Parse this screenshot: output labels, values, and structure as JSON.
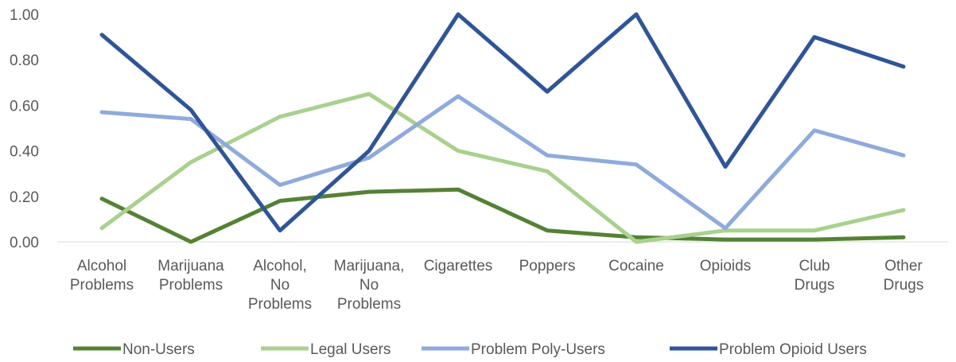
{
  "chart_data": {
    "type": "line",
    "title": "",
    "xlabel": "",
    "ylabel": "",
    "ylim": [
      0,
      1
    ],
    "y_ticks": [
      "0.00",
      "0.20",
      "0.40",
      "0.60",
      "0.80",
      "1.00"
    ],
    "grid": false,
    "legend_position": "bottom",
    "categories": [
      [
        "Alcohol",
        "Problems"
      ],
      [
        "Marijuana",
        "Problems"
      ],
      [
        "Alcohol,",
        "No",
        "Problems"
      ],
      [
        "Marijuana,",
        "No",
        "Problems"
      ],
      [
        "Cigarettes"
      ],
      [
        "Poppers"
      ],
      [
        "Cocaine"
      ],
      [
        "Opioids"
      ],
      [
        "Club",
        "Drugs"
      ],
      [
        "Other",
        "Drugs"
      ]
    ],
    "series": [
      {
        "name": "Non-Users",
        "color": "#548235",
        "values": [
          0.19,
          0.0,
          0.18,
          0.22,
          0.23,
          0.05,
          0.02,
          0.01,
          0.01,
          0.02
        ]
      },
      {
        "name": "Legal Users",
        "color": "#A9D18E",
        "values": [
          0.06,
          0.35,
          0.55,
          0.65,
          0.4,
          0.31,
          0.0,
          0.05,
          0.05,
          0.14
        ]
      },
      {
        "name": "Problem Poly-Users",
        "color": "#8FAADC",
        "values": [
          0.57,
          0.54,
          0.25,
          0.37,
          0.64,
          0.38,
          0.34,
          0.06,
          0.49,
          0.38
        ]
      },
      {
        "name": "Problem Opioid Users",
        "color": "#2F5597",
        "values": [
          0.91,
          0.58,
          0.05,
          0.4,
          1.0,
          0.66,
          1.0,
          0.33,
          0.9,
          0.77
        ]
      }
    ]
  }
}
